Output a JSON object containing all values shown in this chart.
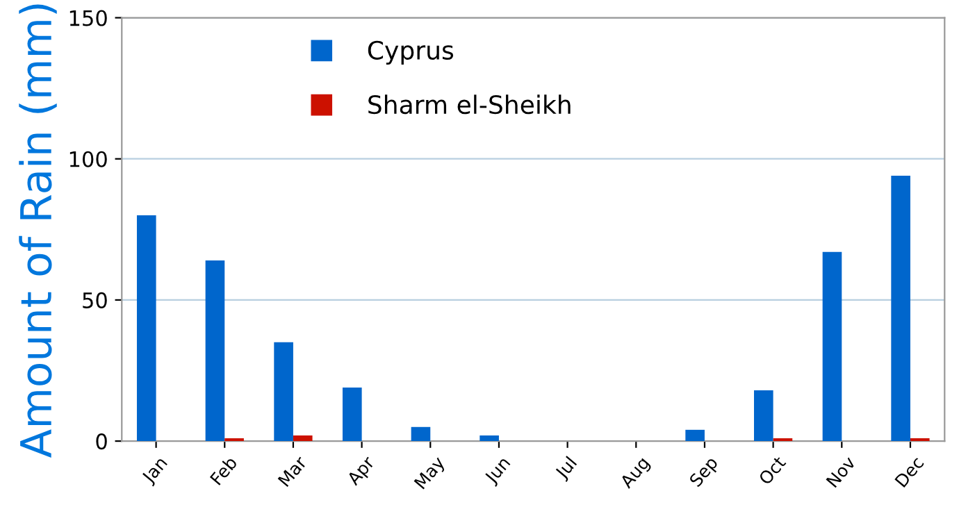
{
  "chart_data": {
    "type": "bar",
    "ylabel": "Amount of Rain (mm)",
    "categories": [
      "Jan",
      "Feb",
      "Mar",
      "Apr",
      "May",
      "Jun",
      "Jul",
      "Aug",
      "Sep",
      "Oct",
      "Nov",
      "Dec"
    ],
    "series": [
      {
        "name": "Cyprus",
        "color": "#0066cc",
        "values": [
          80,
          64,
          35,
          19,
          5,
          2,
          0,
          0,
          4,
          18,
          67,
          94
        ]
      },
      {
        "name": "Sharm el-Sheikh",
        "color": "#cc1100",
        "values": [
          0,
          1,
          2,
          0,
          0,
          0,
          0,
          0,
          0,
          1,
          0,
          1
        ]
      }
    ],
    "ylim": [
      0,
      150
    ],
    "yticks": [
      0,
      50,
      100,
      150
    ],
    "grid": "y",
    "legend": "top"
  }
}
